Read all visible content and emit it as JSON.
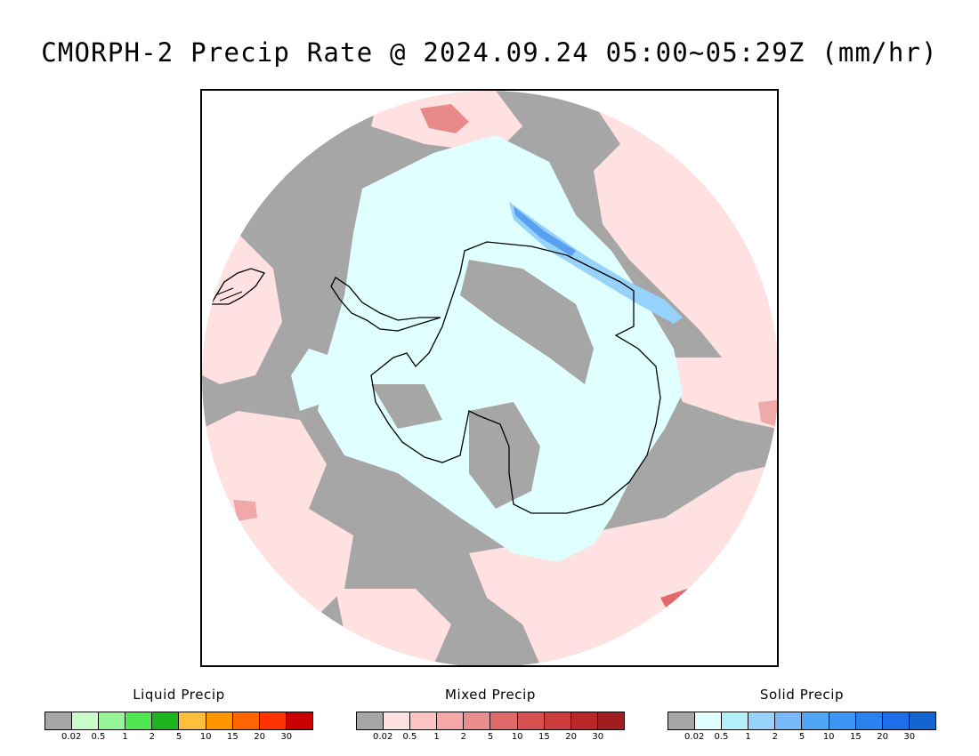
{
  "title": "CMORPH-2 Precip Rate @ 2024.09.24 05:00~05:29Z (mm/hr)",
  "map": {
    "projection": "south-polar-stereographic",
    "colors": {
      "no_precip_background": "#a6a6a6",
      "mixed_light": "#ffe1e1",
      "mixed_mid": "#f5a7a7",
      "mixed_heavy": "#e06a6a",
      "solid_light": "#e0ffff",
      "solid_mid": "#96d2fa",
      "solid_heavy": "#5aa0f0",
      "coastline": "#000000"
    }
  },
  "legends": [
    {
      "title": "Liquid Precip",
      "colors": [
        "#a6a6a6",
        "#c8fcc8",
        "#96f596",
        "#50e650",
        "#1eb41e",
        "#ffbe3c",
        "#ff9600",
        "#ff6400",
        "#ff3200",
        "#c80000"
      ],
      "ticks": [
        "0.02",
        "0.5",
        "1",
        "2",
        "5",
        "10",
        "15",
        "20",
        "30"
      ]
    },
    {
      "title": "Mixed Precip",
      "colors": [
        "#a6a6a6",
        "#ffe1e1",
        "#ffc3c3",
        "#f5a7a7",
        "#eb8c8c",
        "#e06a6a",
        "#d75050",
        "#cd3c3c",
        "#b92828",
        "#a01e1e"
      ],
      "ticks": [
        "0.02",
        "0.5",
        "1",
        "2",
        "5",
        "10",
        "15",
        "20",
        "30"
      ]
    },
    {
      "title": "Solid Precip",
      "colors": [
        "#a6a6a6",
        "#e0ffff",
        "#b4f0fa",
        "#96d2fa",
        "#78b9fa",
        "#50a5f5",
        "#3c96f5",
        "#2882f0",
        "#1e6eeb",
        "#1464d2"
      ],
      "ticks": [
        "0.02",
        "0.5",
        "1",
        "2",
        "5",
        "10",
        "15",
        "20",
        "30"
      ]
    }
  ]
}
